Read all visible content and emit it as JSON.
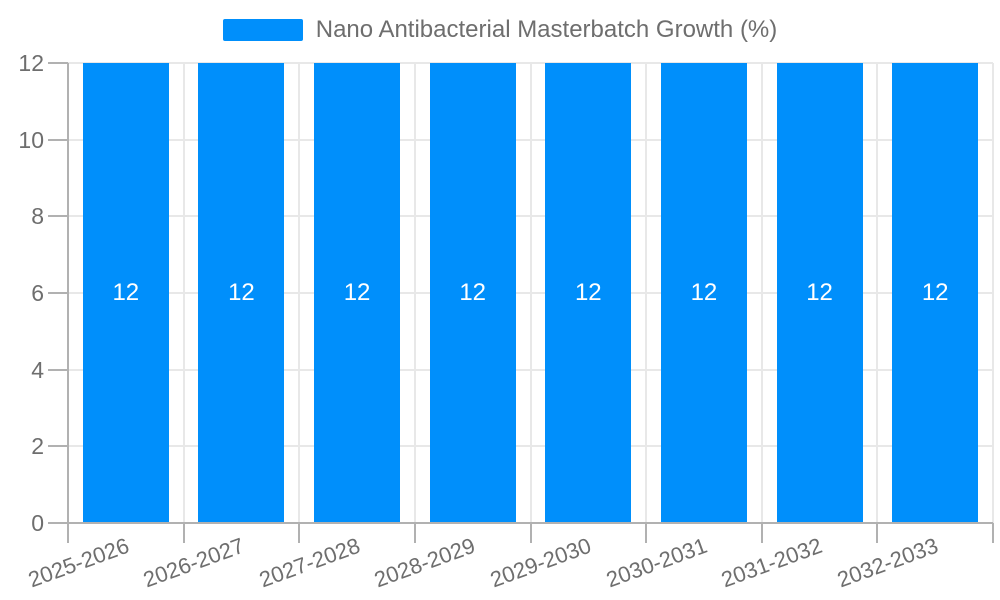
{
  "legend": {
    "label": "Nano Antibacterial Masterbatch Growth (%)"
  },
  "chart_data": {
    "type": "bar",
    "title": "Nano Antibacterial Masterbatch Growth (%)",
    "categories": [
      "2025-2026",
      "2026-2027",
      "2027-2028",
      "2028-2029",
      "2029-2030",
      "2030-2031",
      "2031-2032",
      "2032-2033"
    ],
    "values": [
      12,
      12,
      12,
      12,
      12,
      12,
      12,
      12
    ],
    "data_labels": [
      "12",
      "12",
      "12",
      "12",
      "12",
      "12",
      "12",
      "12"
    ],
    "xlabel": "",
    "ylabel": "",
    "ylim": [
      0,
      12
    ],
    "yticks": [
      0,
      2,
      4,
      6,
      8,
      10,
      12
    ],
    "grid": true,
    "legend_position": "top",
    "colors": {
      "bar": "#008FFB",
      "data_label": "#ffffff",
      "axis_label": "#6e6e6e",
      "grid_line": "#e8e8e8",
      "axis_line": "#b1b1b1",
      "background": "#ffffff"
    }
  }
}
